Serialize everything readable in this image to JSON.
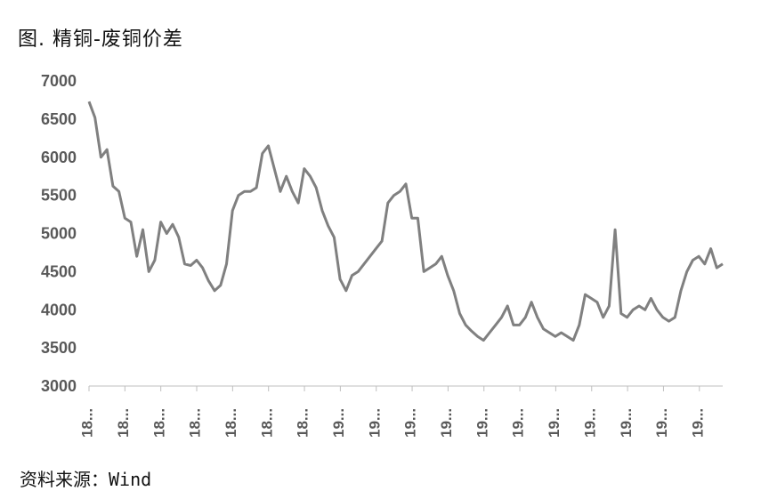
{
  "title": "图. 精铜-废铜价差",
  "source": "资料来源：Wind",
  "chart_data": {
    "type": "line",
    "title": "图. 精铜-废铜价差",
    "xlabel": "",
    "ylabel": "",
    "ylim": [
      3000,
      7000
    ],
    "yticks": [
      3000,
      3500,
      4000,
      4500,
      5000,
      5500,
      6000,
      6500,
      7000
    ],
    "xtick_labels": [
      "18...",
      "18...",
      "18...",
      "18...",
      "18...",
      "18...",
      "18...",
      "19...",
      "19...",
      "19...",
      "19...",
      "19...",
      "19...",
      "19...",
      "19...",
      "19...",
      "19...",
      "19..."
    ],
    "grid": false,
    "legend": "none",
    "line_color": "#808080",
    "series": [
      {
        "values": [
          6730,
          6520,
          6000,
          6100,
          5620,
          5550,
          5200,
          5150,
          4700,
          5050,
          4500,
          4650,
          5150,
          5000,
          5120,
          4950,
          4600,
          4580,
          4650,
          4550,
          4380,
          4250,
          4320,
          4600,
          5300,
          5500,
          5550,
          5550,
          5600,
          6050,
          6150,
          5850,
          5550,
          5750,
          5550,
          5400,
          5850,
          5750,
          5600,
          5300,
          5100,
          4950,
          4400,
          4250,
          4450,
          4500,
          4600,
          4700,
          4800,
          4900,
          5400,
          5500,
          5550,
          5650,
          5200,
          5200,
          4500,
          4550,
          4600,
          4700,
          4450,
          4250,
          3950,
          3800,
          3720,
          3650,
          3600,
          3700,
          3800,
          3900,
          4050,
          3800,
          3800,
          3900,
          4100,
          3900,
          3750,
          3700,
          3650,
          3700,
          3650,
          3600,
          3800,
          4200,
          4150,
          4100,
          3900,
          4050,
          5050,
          3950,
          3900,
          4000,
          4050,
          4000,
          4150,
          4000,
          3900,
          3850,
          3900,
          4250,
          4500,
          4650,
          4700,
          4600,
          4800,
          4550,
          4600
        ]
      }
    ]
  }
}
